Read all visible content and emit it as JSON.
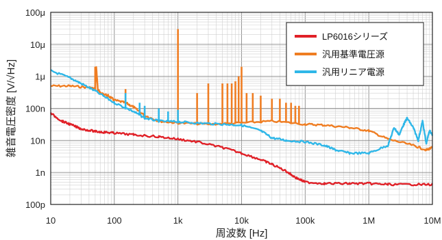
{
  "chart_data": {
    "type": "line",
    "title": "",
    "xlabel": "周波数 [Hz]",
    "ylabel": "雑音電圧密度 [V/√Hz]",
    "xscale": "log",
    "yscale": "log",
    "xlim": [
      10,
      10000000
    ],
    "ylim": [
      1e-10,
      0.0001
    ],
    "x_tick_labels": [
      "10",
      "100",
      "1k",
      "10k",
      "100k",
      "1M",
      "10M"
    ],
    "y_tick_labels": [
      "100μ",
      "10μ",
      "1μ",
      "100n",
      "10n",
      "1n",
      "100p"
    ],
    "grid": true,
    "legend_position": "top-right",
    "series": [
      {
        "name": "LP6016シリーズ",
        "color": "#e02027",
        "points": [
          [
            10,
            7e-08
          ],
          [
            15,
            4e-08
          ],
          [
            20,
            3.2e-08
          ],
          [
            30,
            2.3e-08
          ],
          [
            50,
            1.9e-08
          ],
          [
            70,
            1.8e-08
          ],
          [
            100,
            1.7e-08
          ],
          [
            200,
            1.5e-08
          ],
          [
            500,
            1.3e-08
          ],
          [
            1000,
            1.1e-08
          ],
          [
            2000,
            9e-09
          ],
          [
            5000,
            6e-09
          ],
          [
            10000,
            4e-09
          ],
          [
            20000,
            2.5e-09
          ],
          [
            30000,
            1.8e-09
          ],
          [
            50000,
            1.1e-09
          ],
          [
            70000,
            7e-10
          ],
          [
            100000,
            5e-10
          ],
          [
            200000,
            4.5e-10
          ],
          [
            500000,
            4.5e-10
          ],
          [
            1000000,
            4.5e-10
          ],
          [
            2000000,
            4.2e-10
          ],
          [
            5000000,
            4.2e-10
          ],
          [
            10000000,
            4.2e-10
          ]
        ]
      },
      {
        "name": "汎用基準電圧源",
        "color": "#ef7d22",
        "points": [
          [
            10,
            5e-07
          ],
          [
            20,
            5e-07
          ],
          [
            40,
            4.5e-07
          ],
          [
            50,
            4e-07
          ],
          [
            52,
            2e-06
          ],
          [
            55,
            4e-07
          ],
          [
            60,
            3e-07
          ],
          [
            80,
            2.5e-07
          ],
          [
            100,
            1.8e-07
          ],
          [
            150,
            1.5e-07
          ],
          [
            200,
            1.1e-07
          ],
          [
            300,
            6e-08
          ],
          [
            500,
            4e-08
          ],
          [
            1000,
            3.5e-08
          ],
          [
            3000,
            3.2e-08
          ],
          [
            10000,
            3.5e-08
          ],
          [
            30000,
            4e-08
          ],
          [
            100000,
            3.2e-08
          ],
          [
            200000,
            3e-08
          ],
          [
            500000,
            2.5e-08
          ],
          [
            1000000,
            2e-08
          ],
          [
            2000000,
            1.1e-08
          ],
          [
            5000000,
            7e-09
          ],
          [
            8000000,
            5e-09
          ],
          [
            10000000,
            6e-09
          ]
        ],
        "spikes": [
          [
            50,
            2e-06
          ],
          [
            150,
            4e-07
          ],
          [
            1000,
            3e-05
          ],
          [
            2000,
            3e-07
          ],
          [
            3000,
            6e-07
          ],
          [
            5000,
            6e-07
          ],
          [
            6000,
            6e-07
          ],
          [
            7000,
            6e-07
          ],
          [
            8000,
            7e-07
          ],
          [
            9000,
            1e-06
          ],
          [
            10000,
            2e-06
          ],
          [
            12000,
            3e-07
          ],
          [
            15000,
            3e-07
          ],
          [
            20000,
            2.5e-07
          ],
          [
            30000,
            2e-07
          ],
          [
            40000,
            2e-07
          ],
          [
            50000,
            1.5e-07
          ],
          [
            60000,
            1.5e-07
          ],
          [
            70000,
            1.2e-07
          ],
          [
            80000,
            1.2e-07
          ]
        ]
      },
      {
        "name": "汎用リニア電源",
        "color": "#2fb7e8",
        "points": [
          [
            10,
            1.5e-06
          ],
          [
            20,
            9e-07
          ],
          [
            30,
            6e-07
          ],
          [
            50,
            3.5e-07
          ],
          [
            100,
            1.5e-07
          ],
          [
            200,
            8e-08
          ],
          [
            300,
            5e-08
          ],
          [
            500,
            4e-08
          ],
          [
            1000,
            3.8e-08
          ],
          [
            2000,
            3.5e-08
          ],
          [
            5000,
            3.2e-08
          ],
          [
            10000,
            3e-08
          ],
          [
            20000,
            2e-08
          ],
          [
            30000,
            1.2e-08
          ],
          [
            50000,
            1e-08
          ],
          [
            100000,
            9e-09
          ],
          [
            200000,
            7e-09
          ],
          [
            300000,
            5e-09
          ],
          [
            500000,
            4e-09
          ],
          [
            1000000,
            4e-09
          ],
          [
            2000000,
            7e-09
          ],
          [
            2500000,
            2.5e-08
          ],
          [
            3000000,
            1.5e-08
          ],
          [
            3500000,
            3e-08
          ],
          [
            4000000,
            5e-08
          ],
          [
            5000000,
            2.5e-08
          ],
          [
            6000000,
            1e-08
          ],
          [
            7000000,
            4e-08
          ],
          [
            8000000,
            8e-09
          ],
          [
            9000000,
            2e-08
          ],
          [
            10000000,
            1.5e-08
          ]
        ],
        "spikes": [
          [
            150,
            3e-07
          ],
          [
            250,
            1.5e-07
          ],
          [
            300,
            1.2e-07
          ],
          [
            500,
            1e-07
          ],
          [
            700,
            8e-08
          ],
          [
            1000,
            9e-08
          ]
        ]
      }
    ]
  }
}
